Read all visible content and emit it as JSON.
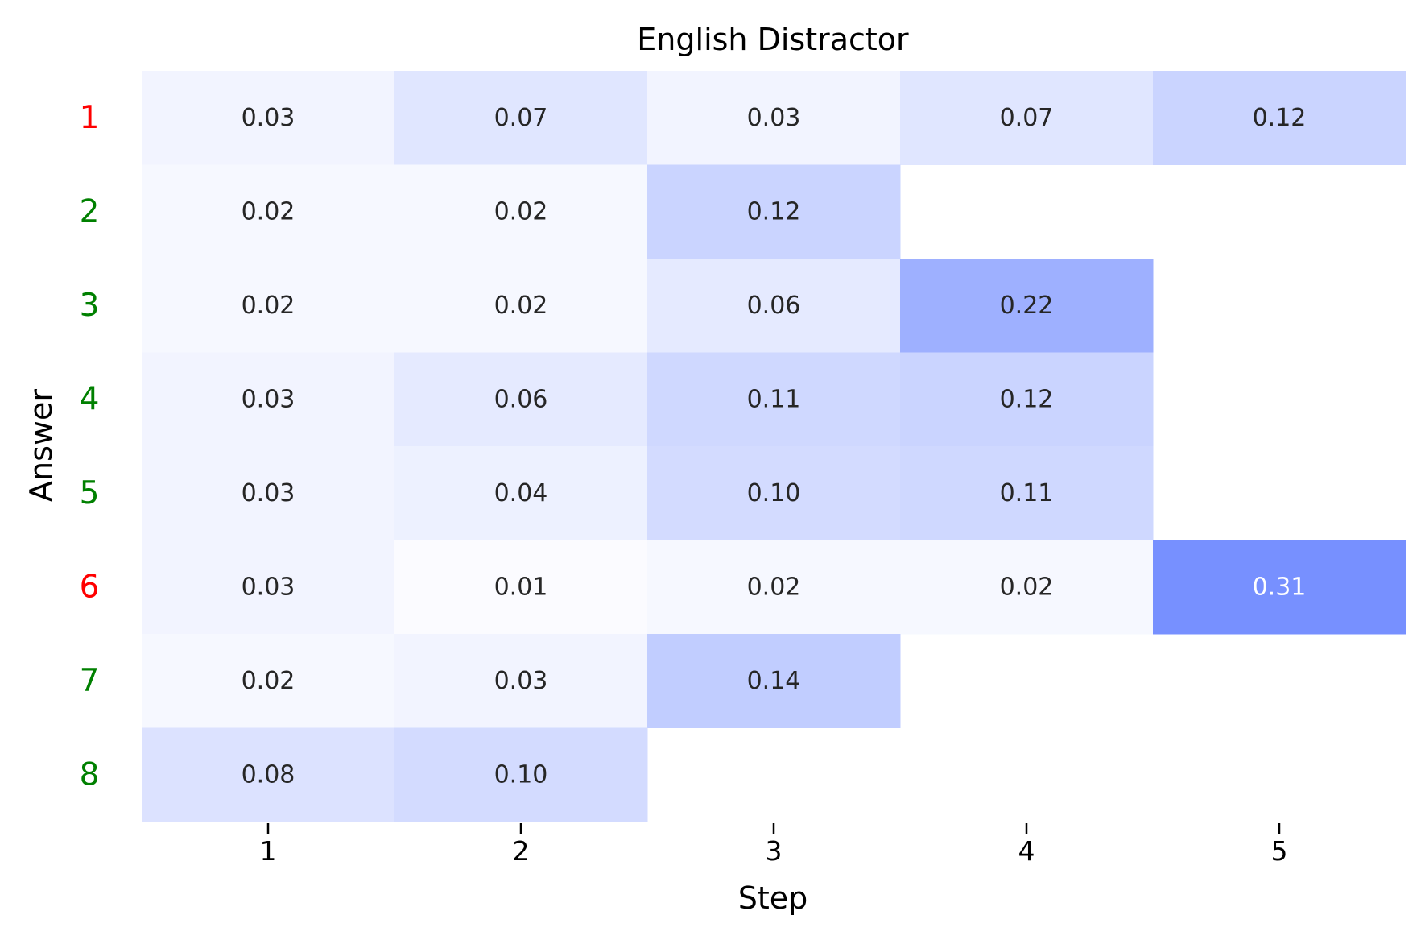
{
  "chart_data": {
    "type": "heatmap",
    "title": "English Distractor",
    "xlabel": "Step",
    "ylabel": "Answer",
    "x_categories": [
      "1",
      "2",
      "3",
      "4",
      "5"
    ],
    "y_categories": [
      "1",
      "2",
      "3",
      "4",
      "5",
      "6",
      "7",
      "8"
    ],
    "y_label_colors": [
      "#ff0000",
      "#008000",
      "#008000",
      "#008000",
      "#008000",
      "#ff0000",
      "#008000",
      "#008000"
    ],
    "colormap": {
      "low": "#ffffff",
      "high": "#4f70ff",
      "vmin": 0,
      "vmax": 0.4
    },
    "grid": false,
    "values": [
      [
        0.03,
        0.07,
        0.03,
        0.07,
        0.12
      ],
      [
        0.02,
        0.02,
        0.12,
        null,
        null
      ],
      [
        0.02,
        0.02,
        0.06,
        0.22,
        null
      ],
      [
        0.03,
        0.06,
        0.11,
        0.12,
        null
      ],
      [
        0.03,
        0.04,
        0.1,
        0.11,
        null
      ],
      [
        0.03,
        0.01,
        0.02,
        0.02,
        0.31
      ],
      [
        0.02,
        0.03,
        0.14,
        null,
        null
      ],
      [
        0.08,
        0.1,
        null,
        null,
        null
      ]
    ]
  }
}
